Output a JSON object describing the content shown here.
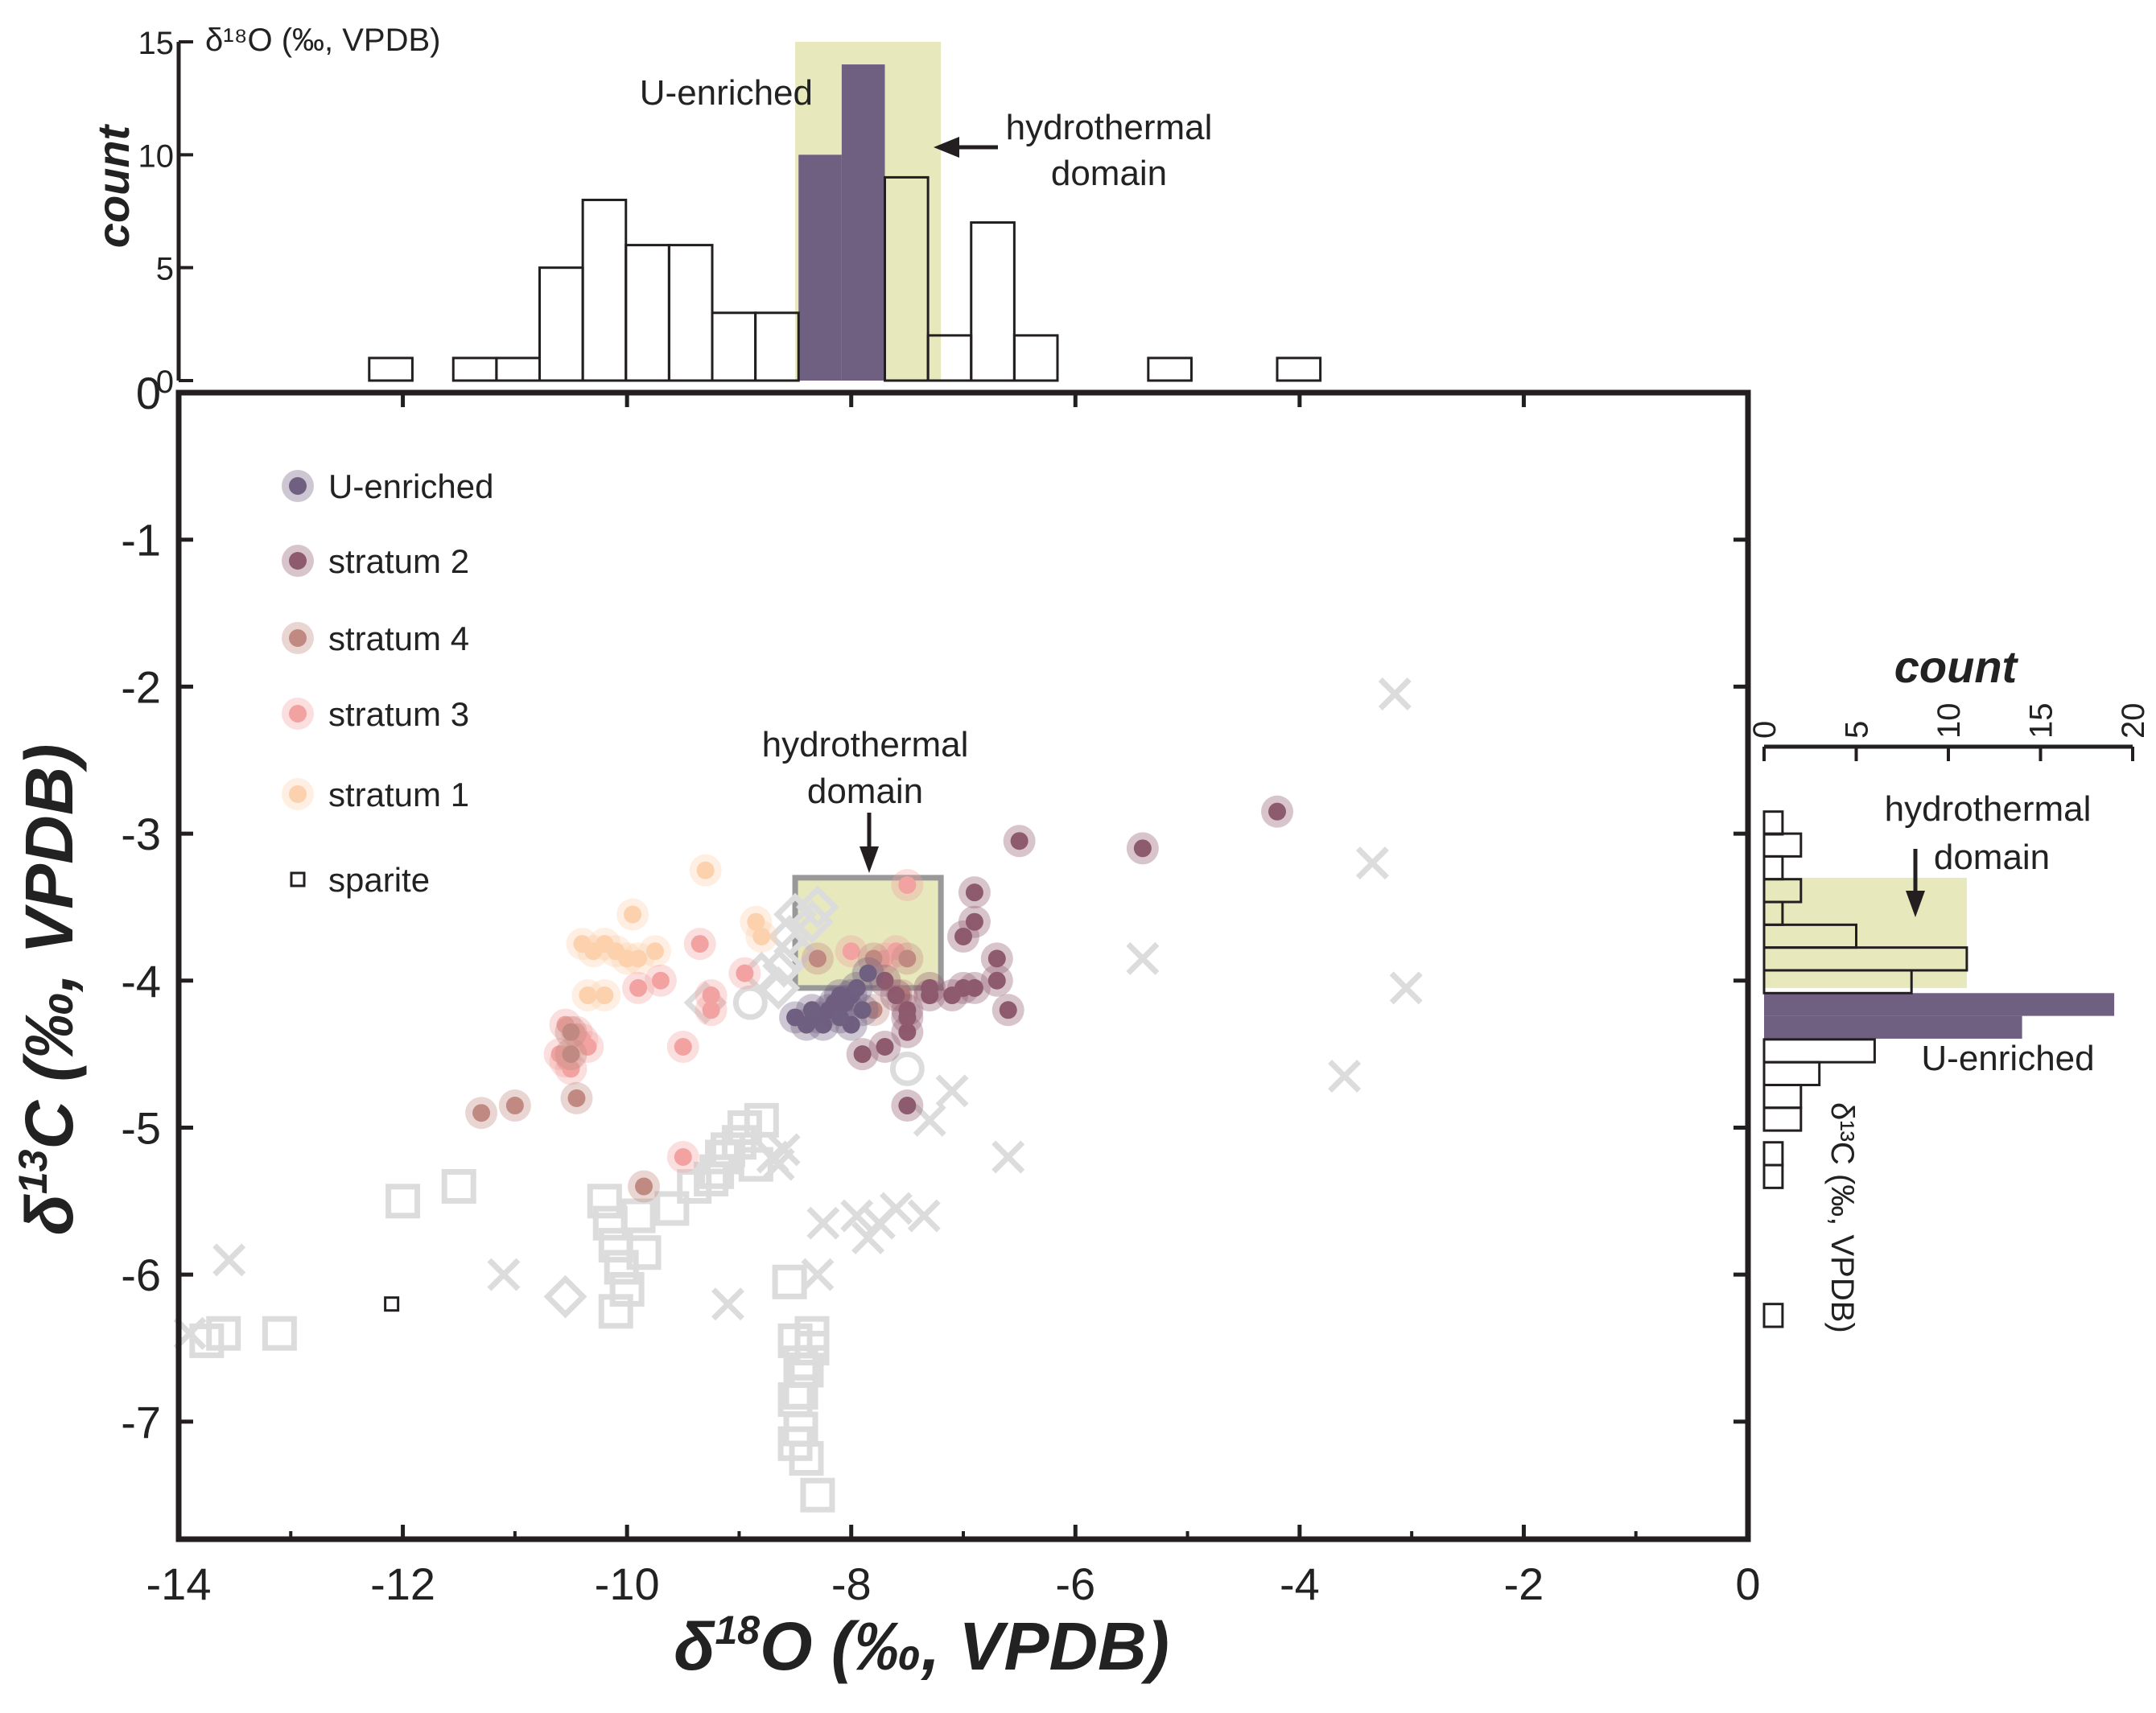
{
  "colors": {
    "axis": "#231f20",
    "u_enriched": "#6f5f80",
    "stratum_2": "#8e5a6e",
    "stratum_4": "#c08a82",
    "stratum_3": "#f2a3a1",
    "stratum_1": "#fcd1ad",
    "hydrothermal": "#e7e9bd",
    "hydrothermal_box_stroke": "#999999",
    "grey_markers": "#dcdcdc"
  },
  "chart_data": [
    {
      "type": "scatter",
      "xlabel": "δ18O (‰, VPDB)",
      "ylabel": "δ13C (‰, VPDB)",
      "xlim": [
        -14,
        0
      ],
      "ylim": [
        -7.8,
        0
      ],
      "x_ticks": [
        -14,
        -12,
        -10,
        -8,
        -6,
        -4,
        -2,
        0
      ],
      "x_tick_labels": [
        "-14",
        "-12",
        "-10",
        "-8",
        "-6",
        "-4",
        "-2",
        "0"
      ],
      "y_ticks": [
        0,
        -1,
        -2,
        -3,
        -4,
        -5,
        -6,
        -7
      ],
      "y_tick_labels": [
        "0",
        "-1",
        "-2",
        "-3",
        "-4",
        "-5",
        "-6",
        "-7"
      ],
      "legend_position": "top-left",
      "legend": [
        "U-enriched",
        "stratum 2",
        "stratum 4",
        "stratum 3",
        "stratum 1",
        "sparite"
      ],
      "annotation": "hydrothermal domain",
      "hydrothermal_box": {
        "x": [
          -8.5,
          -7.2
        ],
        "y": [
          -4.05,
          -3.3
        ]
      },
      "series": [
        {
          "name": "U-enriched",
          "marker": "circle",
          "color": "#6f5f80",
          "x": [
            -8.5,
            -8.4,
            -8.3,
            -8.2,
            -8.15,
            -8.1,
            -8.05,
            -8.0,
            -7.95,
            -7.9,
            -8.25,
            -8.35,
            -8.0,
            -7.85,
            -8.1
          ],
          "y": [
            -4.25,
            -4.3,
            -4.25,
            -4.2,
            -4.15,
            -4.1,
            -4.15,
            -4.1,
            -4.05,
            -4.2,
            -4.3,
            -4.2,
            -4.3,
            -3.95,
            -4.25
          ]
        },
        {
          "name": "stratum 2",
          "marker": "circle",
          "color": "#8e5a6e",
          "x": [
            -4.2,
            -5.4,
            -6.5,
            -6.9,
            -6.9,
            -7.0,
            -6.7,
            -6.7,
            -6.9,
            -7.0,
            -7.1,
            -7.3,
            -6.6,
            -7.5,
            -7.5,
            -7.5,
            -7.7,
            -7.9,
            -7.5,
            -7.3,
            -7.6,
            -7.7
          ],
          "y": [
            -2.85,
            -3.1,
            -3.05,
            -3.4,
            -3.6,
            -3.7,
            -3.85,
            -4.0,
            -4.05,
            -4.05,
            -4.1,
            -4.1,
            -4.2,
            -4.2,
            -4.35,
            -4.85,
            -4.45,
            -4.5,
            -4.25,
            -4.05,
            -4.1,
            -4.0
          ]
        },
        {
          "name": "stratum 4",
          "marker": "circle",
          "color": "#c08a82",
          "x": [
            -10.5,
            -10.5,
            -10.45,
            -11.0,
            -11.3,
            -9.85,
            -7.8,
            -7.5,
            -7.55,
            -8.3,
            -7.8
          ],
          "y": [
            -4.35,
            -4.5,
            -4.8,
            -4.85,
            -4.9,
            -5.4,
            -3.85,
            -3.85,
            -4.1,
            -3.85,
            -4.2
          ]
        },
        {
          "name": "stratum 3",
          "marker": "circle",
          "color": "#f2a3a1",
          "x": [
            -10.6,
            -10.55,
            -10.5,
            -10.45,
            -10.4,
            -10.35,
            -10.55,
            -9.9,
            -9.7,
            -9.5,
            -9.35,
            -9.25,
            -9.25,
            -9.5,
            -8.95,
            -8.0,
            -7.5,
            -7.6,
            -7.7
          ],
          "y": [
            -4.5,
            -4.55,
            -4.6,
            -4.35,
            -4.4,
            -4.45,
            -4.3,
            -4.05,
            -4.0,
            -4.45,
            -3.75,
            -4.1,
            -4.2,
            -5.2,
            -3.95,
            -3.8,
            -3.35,
            -3.8,
            -3.85
          ]
        },
        {
          "name": "stratum 1",
          "marker": "circle",
          "color": "#fcd1ad",
          "x": [
            -10.4,
            -10.3,
            -10.2,
            -10.1,
            -10.0,
            -9.9,
            -9.75,
            -10.35,
            -10.2,
            -9.3,
            -9.95,
            -8.85,
            -8.8
          ],
          "y": [
            -3.75,
            -3.8,
            -3.75,
            -3.8,
            -3.85,
            -3.85,
            -3.8,
            -4.1,
            -4.1,
            -3.25,
            -3.55,
            -3.6,
            -3.7
          ]
        },
        {
          "name": "sparite",
          "marker": "open-square",
          "color": "#231f20",
          "x": [
            -12.1
          ],
          "y": [
            -6.2
          ]
        }
      ],
      "background_markers": {
        "squares": {
          "x": [
            -13.75,
            -13.6,
            -13.1,
            -12.0,
            -11.5,
            -10.2,
            -10.15,
            -10.1,
            -10.05,
            -10.0,
            -10.1,
            -9.9,
            -9.85,
            -9.6,
            -9.4,
            -9.25,
            -9.2,
            -9.15,
            -9.1,
            -9.0,
            -8.95,
            -8.85,
            -8.8,
            -8.55,
            -8.5,
            -8.45,
            -8.4,
            -8.5,
            -8.35,
            -8.45,
            -8.4,
            -8.3,
            -8.5,
            -8.45,
            -8.35
          ],
          "y": [
            -6.45,
            -6.4,
            -6.4,
            -5.5,
            -5.4,
            -5.5,
            -5.65,
            -5.8,
            -5.95,
            -6.1,
            -6.25,
            -5.6,
            -5.85,
            -5.55,
            -5.4,
            -5.35,
            -5.3,
            -5.2,
            -5.15,
            -5.1,
            -5.0,
            -5.25,
            -4.95,
            -6.05,
            -6.45,
            -6.6,
            -6.65,
            -6.85,
            -6.4,
            -7.05,
            -7.25,
            -7.5,
            -7.15,
            -6.8,
            -6.5
          ]
        },
        "crosses": {
          "x": [
            -3.15,
            -3.35,
            -3.05,
            -5.4,
            -3.6,
            -13.9,
            -13.55,
            -11.1,
            -9.1,
            -8.65,
            -8.3,
            -7.95,
            -7.85,
            -7.75,
            -7.6,
            -7.35,
            -7.3,
            -7.1,
            -6.6,
            -8.25,
            -8.6,
            -8.7
          ],
          "y": [
            -2.05,
            -3.2,
            -4.05,
            -3.85,
            -4.65,
            -6.4,
            -5.9,
            -6.0,
            -6.2,
            -5.25,
            -6.0,
            -5.6,
            -5.75,
            -5.65,
            -5.55,
            -5.6,
            -4.95,
            -4.75,
            -5.2,
            -5.65,
            -5.15,
            -5.2
          ]
        },
        "diamonds": {
          "x": [
            -10.55,
            -9.3,
            -8.8,
            -8.65,
            -8.5,
            -8.35,
            -8.5,
            -8.3,
            -8.55,
            -8.6
          ],
          "y": [
            -6.15,
            -4.15,
            -3.95,
            -4.05,
            -3.8,
            -3.6,
            -3.55,
            -3.5,
            -3.7,
            -3.9
          ]
        },
        "circles": {
          "x": [
            -7.5,
            -8.9
          ],
          "y": [
            -4.6,
            -4.15
          ]
        }
      }
    },
    {
      "type": "bar",
      "orientation": "vertical",
      "ylabel": "count",
      "xlabel": "δ18O (‰, VPDB)",
      "ylim": [
        0,
        15
      ],
      "y_ticks": [
        0,
        5,
        10,
        15
      ],
      "y_tick_labels": [
        "0",
        "5",
        "10",
        "15"
      ],
      "bin_width": 0.385,
      "bins_x": [
        -12.3,
        -11.55,
        -11.165,
        -10.78,
        -10.395,
        -10.01,
        -9.625,
        -9.24,
        -8.855,
        -7.7,
        -7.315,
        -6.93,
        -6.545,
        -5.35,
        -4.2
      ],
      "counts": [
        1,
        1,
        1,
        5,
        8,
        6,
        6,
        3,
        3,
        9,
        2,
        7,
        2,
        1,
        1
      ],
      "u_enriched_bins_x": [
        -8.47,
        -8.085
      ],
      "u_enriched_counts": [
        10,
        14
      ],
      "hydrothermal_band_x": [
        -8.5,
        -7.2
      ],
      "annotations": [
        "U-enriched",
        "hydrothermal domain"
      ]
    },
    {
      "type": "bar",
      "orientation": "horizontal",
      "xlabel": "count",
      "ylabel": "δ13C (‰, VPDB)",
      "xlim": [
        0,
        20
      ],
      "x_ticks": [
        0,
        5,
        10,
        15,
        20
      ],
      "x_tick_labels": [
        "0",
        "5",
        "10",
        "15",
        "20"
      ],
      "bin_height": 0.155,
      "bins_y": [
        -2.85,
        -3.0,
        -3.155,
        -3.31,
        -3.465,
        -3.62,
        -3.775,
        -3.93,
        -4.4,
        -4.555,
        -4.71,
        -4.865,
        -5.1,
        -5.255,
        -6.2
      ],
      "counts": [
        1,
        2,
        1,
        2,
        1,
        5,
        11,
        8,
        6,
        3,
        2,
        2,
        1,
        1,
        1
      ],
      "u_enriched_bins_y": [
        -4.085,
        -4.24
      ],
      "u_enriched_counts": [
        19,
        14
      ],
      "hydrothermal_band_y": [
        -4.05,
        -3.3
      ],
      "annotations": [
        "hydrothermal domain",
        "U-enriched"
      ]
    }
  ],
  "labels": {
    "scatter_xlabel_delta": "δ",
    "scatter_xlabel_sup": "18",
    "scatter_xlabel_rest": "O (‰, VPDB)",
    "scatter_ylabel_delta": "δ",
    "scatter_ylabel_sup": "13",
    "scatter_ylabel_rest": "C (‰, VPDB)",
    "top_count_label": "count",
    "top_axis_label": "δ¹⁸O (‰, VPDB)",
    "top_u_enriched": "U-enriched",
    "top_hydro_line1": "hydrothermal",
    "top_hydro_line2": "domain",
    "center_hydro_line1": "hydrothermal",
    "center_hydro_line2": "domain",
    "right_count_label": "count",
    "right_hydro_line1": "hydrothermal",
    "right_hydro_line2": "domain",
    "right_u_enriched": "U-enriched",
    "right_axis_label": "δ¹³C (‰, VPDB)"
  }
}
